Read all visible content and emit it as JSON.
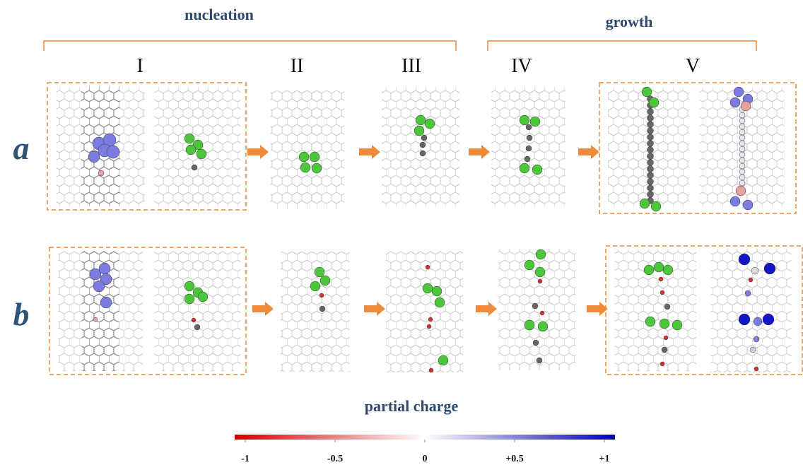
{
  "header": {
    "left": "nucleation",
    "right": "growth"
  },
  "stages": [
    "I",
    "II",
    "III",
    "IV",
    "V"
  ],
  "rows": [
    "a",
    "b"
  ],
  "colorbar": {
    "title": "partial charge",
    "lim": [
      -1,
      1
    ],
    "colors": [
      "#cc0000",
      "#ffffff",
      "#0000aa"
    ],
    "ticks": [
      -1,
      -0.5,
      0,
      {
        "value": 0.5,
        "label": "+0.5"
      },
      {
        "value": 1,
        "label": "+1"
      }
    ]
  }
}
